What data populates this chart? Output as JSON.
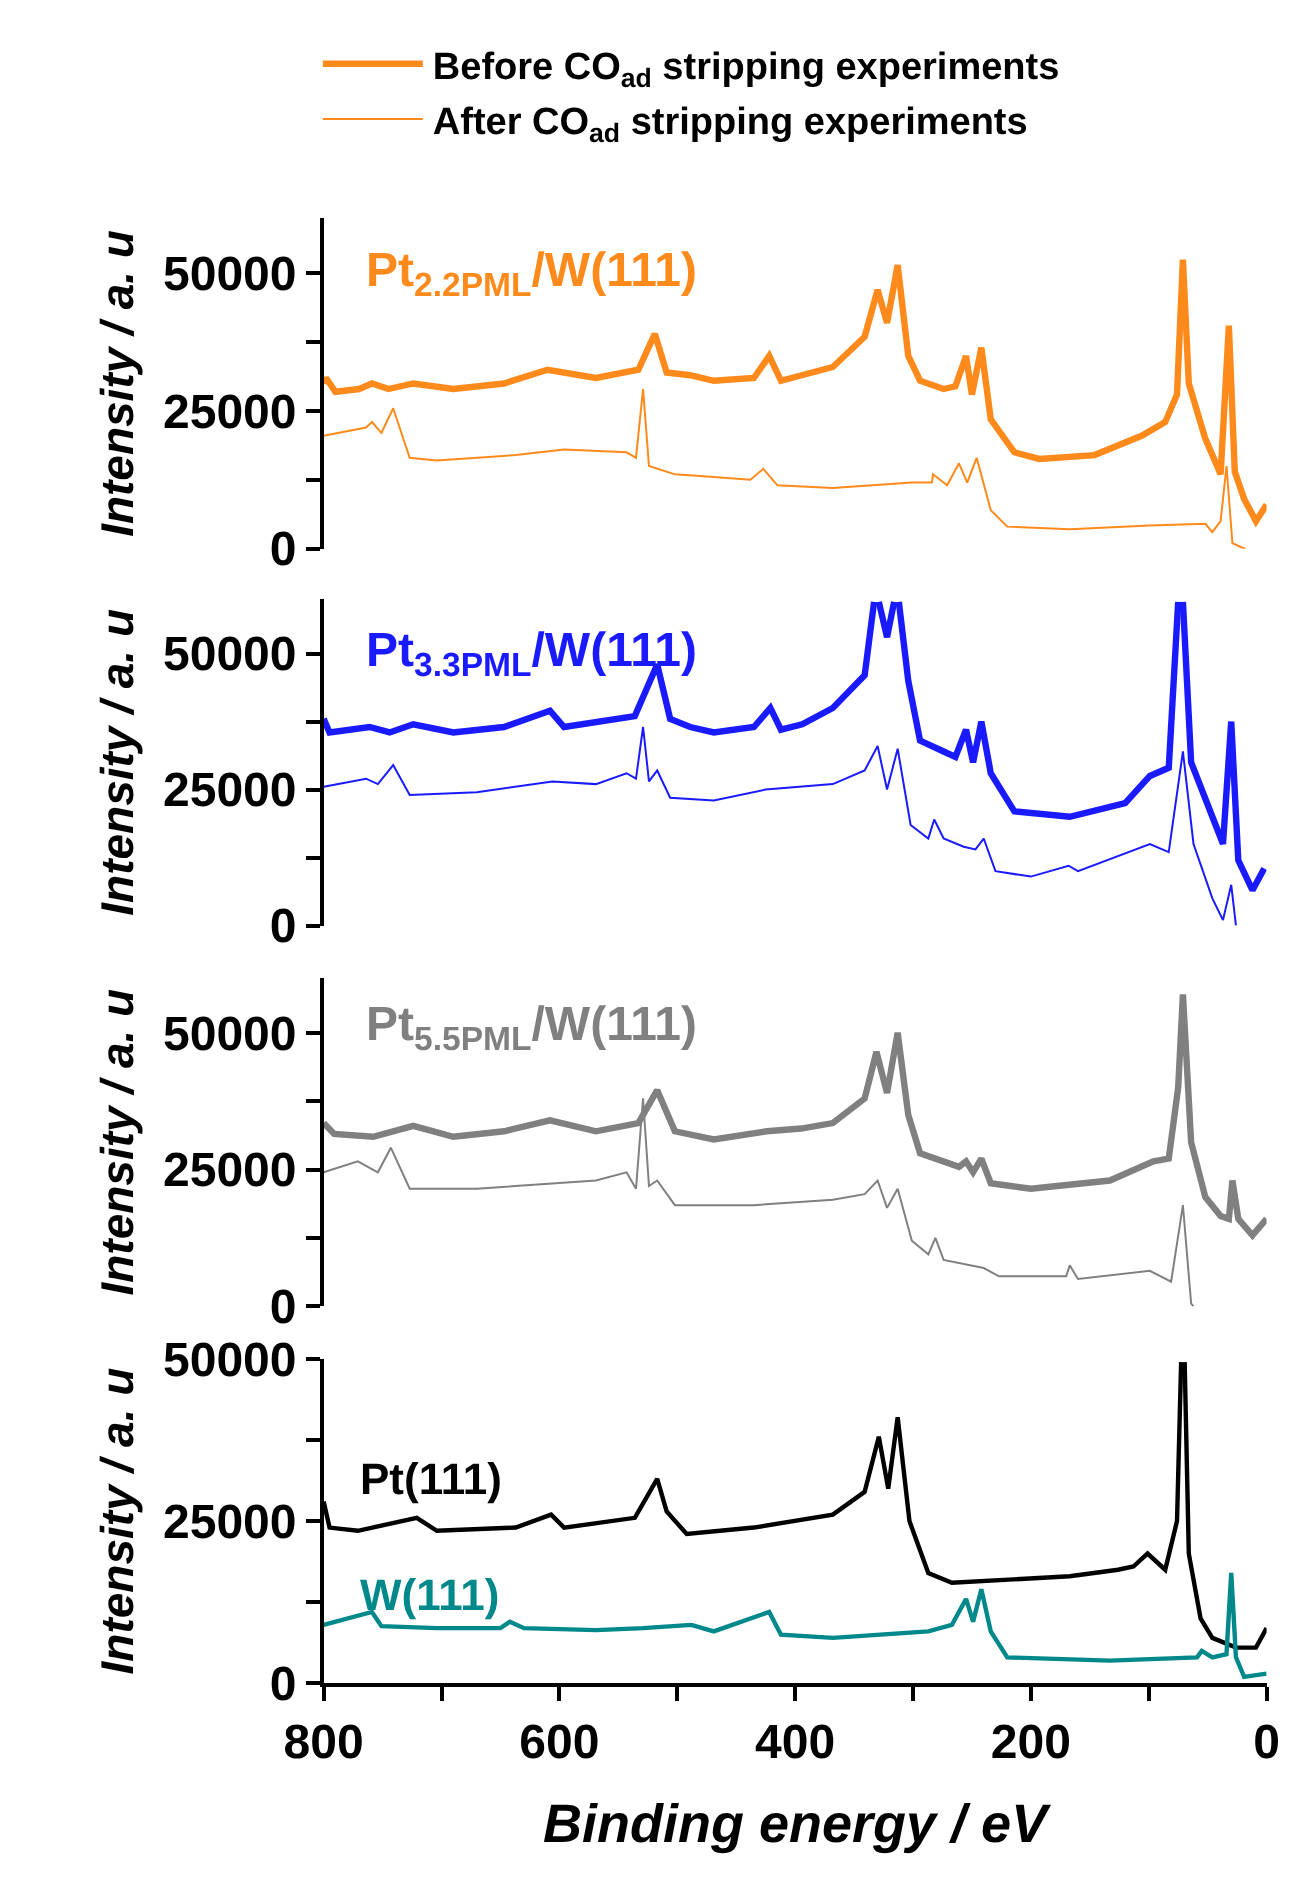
{
  "chart_data": [
    {
      "type": "line",
      "legend": "top",
      "ylabel": "Intensity / a. u",
      "xlim": [
        800,
        0
      ],
      "ylim": [
        0,
        60000
      ],
      "yticks": [
        0,
        25000,
        50000
      ],
      "tick_labels": "y",
      "marker": "none",
      "line_style": "solid",
      "annotations": [
        "Pt$_{2.2PML}$/W(111)"
      ],
      "series": [
        {
          "name": "Before CO$_{ad}$ stripping experiments",
          "color": "#ff8a1c",
          "x": [
            800,
            798,
            790,
            770,
            759,
            745,
            724,
            690,
            647,
            610,
            569,
            533,
            519,
            509,
            489,
            469,
            435,
            422,
            412,
            368,
            341,
            330,
            322,
            313,
            304,
            294,
            274,
            264,
            255,
            250,
            242,
            234,
            214,
            193,
            146,
            106,
            86,
            76,
            71,
            66,
            52,
            39,
            32,
            27,
            19,
            9,
            0
          ],
          "values": [
            30000,
            31000,
            28500,
            29000,
            30000,
            29000,
            30000,
            29000,
            30000,
            32500,
            31000,
            32500,
            39000,
            32000,
            31500,
            30500,
            31000,
            35000,
            30500,
            33000,
            38500,
            47000,
            41000,
            51500,
            35000,
            30500,
            29000,
            29500,
            35000,
            28000,
            36500,
            23500,
            17500,
            16300,
            17000,
            20500,
            23000,
            28000,
            52500,
            30000,
            20000,
            13500,
            40500,
            14000,
            9000,
            5000,
            8000
          ]
        },
        {
          "name": "After CO$_{ad}$ stripping experiments",
          "color": "#ff8a1c",
          "x": [
            800,
            764,
            759,
            751,
            741,
            727,
            704,
            637,
            596,
            543,
            535,
            529,
            524,
            502,
            469,
            438,
            427,
            415,
            368,
            301,
            284,
            283,
            271,
            261,
            254,
            246,
            234,
            220,
            167,
            99,
            52,
            46,
            39,
            34,
            29,
            22,
            18
          ],
          "values": [
            20500,
            22000,
            23000,
            21000,
            25500,
            16500,
            16000,
            17000,
            18000,
            17500,
            16500,
            29000,
            15000,
            13500,
            13000,
            12500,
            14500,
            11500,
            11000,
            12000,
            12000,
            13500,
            11500,
            15500,
            12000,
            16500,
            7000,
            4000,
            3500,
            4200,
            4500,
            3000,
            5000,
            15000,
            1000,
            300,
            0
          ]
        }
      ]
    },
    {
      "type": "line",
      "ylabel": "Intensity / a. u",
      "xlim": [
        800,
        0
      ],
      "ylim": [
        0,
        60000
      ],
      "yticks": [
        0,
        25000,
        50000
      ],
      "tick_labels": "y",
      "marker": "none",
      "line_style": "solid",
      "annotations": [
        "Pt$_{3.3PML}$/W(111)"
      ],
      "series": [
        {
          "color": "#1a1aff",
          "x": [
            800,
            795,
            761,
            744,
            724,
            690,
            647,
            608,
            596,
            536,
            517,
            506,
            489,
            469,
            435,
            421,
            412,
            394,
            368,
            341,
            333,
            331,
            329,
            322,
            316,
            314,
            312,
            304,
            294,
            274,
            264,
            255,
            249,
            242,
            234,
            214,
            167,
            120,
            99,
            83,
            75,
            73,
            71,
            64,
            46,
            37,
            30,
            24,
            12,
            2
          ],
          "values": [
            38000,
            35500,
            36500,
            35500,
            37000,
            35500,
            36500,
            39500,
            36500,
            38500,
            48000,
            38000,
            36500,
            35500,
            36500,
            40000,
            36000,
            37000,
            40000,
            46000,
            59500,
            null,
            59500,
            53000,
            59500,
            null,
            59500,
            45000,
            34000,
            32000,
            31000,
            36000,
            30000,
            37500,
            28000,
            21000,
            20000,
            22500,
            27500,
            29000,
            59500,
            null,
            59500,
            30000,
            20000,
            15000,
            37500,
            12000,
            6500,
            10500
          ]
        },
        {
          "color": "#1a1aff",
          "x": [
            800,
            764,
            754,
            741,
            727,
            670,
            606,
            569,
            543,
            535,
            529,
            524,
            517,
            506,
            469,
            425,
            368,
            341,
            330,
            322,
            313,
            302,
            287,
            282,
            274,
            257,
            247,
            240,
            230,
            200,
            168,
            160,
            99,
            83,
            71,
            62,
            46,
            37,
            30,
            26
          ],
          "values": [
            25500,
            27000,
            26000,
            29500,
            24000,
            24500,
            26500,
            26000,
            28000,
            27000,
            36500,
            26500,
            28500,
            23500,
            23000,
            25000,
            26000,
            28500,
            33000,
            25000,
            32500,
            18500,
            16000,
            19500,
            16000,
            14500,
            14000,
            16000,
            10000,
            9000,
            11000,
            10000,
            15000,
            13500,
            32000,
            15000,
            5000,
            1000,
            7500,
            0
          ]
        }
      ]
    },
    {
      "type": "line",
      "ylabel": "Intensity / a. u",
      "xlim": [
        800,
        0
      ],
      "ylim": [
        0,
        60000
      ],
      "yticks": [
        0,
        25000,
        50000
      ],
      "tick_labels": "y",
      "marker": "none",
      "line_style": "solid",
      "annotations": [
        "Pt$_{5.5PML}$/W(111)"
      ],
      "series": [
        {
          "color": "#808080",
          "x": [
            800,
            791,
            758,
            724,
            690,
            647,
            608,
            569,
            533,
            517,
            502,
            469,
            424,
            395,
            368,
            341,
            331,
            322,
            313,
            304,
            294,
            261,
            255,
            249,
            242,
            234,
            200,
            133,
            96,
            83,
            75,
            71,
            64,
            52,
            39,
            32,
            29,
            24,
            12,
            0
          ],
          "values": [
            33500,
            31500,
            31000,
            33000,
            31000,
            32000,
            34000,
            32000,
            33500,
            39500,
            32000,
            30500,
            32000,
            32500,
            33500,
            38000,
            46500,
            39000,
            50000,
            35000,
            28000,
            25500,
            26500,
            24500,
            27000,
            22500,
            21500,
            23000,
            26500,
            27000,
            40000,
            57000,
            30000,
            20000,
            16500,
            16000,
            23000,
            16000,
            13000,
            16000
          ]
        },
        {
          "color": "#808080",
          "x": [
            800,
            771,
            754,
            743,
            727,
            670,
            569,
            543,
            535,
            529,
            524,
            517,
            502,
            435,
            368,
            341,
            330,
            322,
            313,
            301,
            287,
            281,
            274,
            240,
            227,
            170,
            167,
            160,
            99,
            81,
            71,
            64,
            62
          ],
          "values": [
            24500,
            26500,
            24500,
            29000,
            21500,
            21500,
            23000,
            24500,
            21500,
            38000,
            22000,
            23000,
            18500,
            18500,
            19500,
            20500,
            23000,
            18000,
            21500,
            12000,
            9500,
            12500,
            8500,
            7000,
            5500,
            5500,
            7500,
            5000,
            6500,
            4500,
            18500,
            500,
            0
          ]
        }
      ]
    },
    {
      "type": "line",
      "ylabel": "Intensity / a. u",
      "xlabel": "Binding energy / eV",
      "xlim": [
        800,
        0
      ],
      "xticks": [
        800,
        600,
        400,
        200,
        0
      ],
      "ylim": [
        0,
        50000
      ],
      "yticks": [
        0,
        25000,
        50000
      ],
      "marker": "none",
      "line_style": "solid",
      "series": [
        {
          "name": "Pt(111)",
          "color": "#000000",
          "x": [
            800,
            795,
            771,
            721,
            704,
            637,
            607,
            596,
            536,
            517,
            509,
            492,
            435,
            368,
            341,
            329,
            321,
            313,
            303,
            287,
            267,
            167,
            126,
            113,
            101,
            86,
            76,
            72.5,
            71,
            69.5,
            66,
            56,
            46,
            26,
            9,
            0
          ],
          "values": [
            28000,
            24000,
            23500,
            25500,
            23500,
            24000,
            26000,
            24000,
            25500,
            31500,
            26500,
            23000,
            24000,
            26000,
            29500,
            38000,
            30000,
            41000,
            25000,
            17000,
            15500,
            16500,
            17500,
            18000,
            20000,
            17500,
            25000,
            49500,
            null,
            49500,
            20000,
            10000,
            7000,
            5500,
            5500,
            8500
          ]
        },
        {
          "name": "W(111)",
          "color": "#00888a",
          "x": [
            800,
            759,
            751,
            704,
            650,
            642,
            630,
            569,
            529,
            488,
            469,
            422,
            412,
            368,
            287,
            267,
            255,
            249,
            242,
            234,
            220,
            133,
            59,
            55,
            46,
            34,
            30,
            26,
            19,
            0
          ],
          "values": [
            9000,
            11000,
            8800,
            8500,
            8500,
            9500,
            8500,
            8200,
            8500,
            9000,
            8000,
            11000,
            7500,
            7000,
            8000,
            9000,
            13000,
            9500,
            14500,
            8000,
            4000,
            3500,
            4000,
            5000,
            4000,
            4500,
            17000,
            4000,
            1000,
            1500
          ]
        }
      ]
    }
  ]
}
